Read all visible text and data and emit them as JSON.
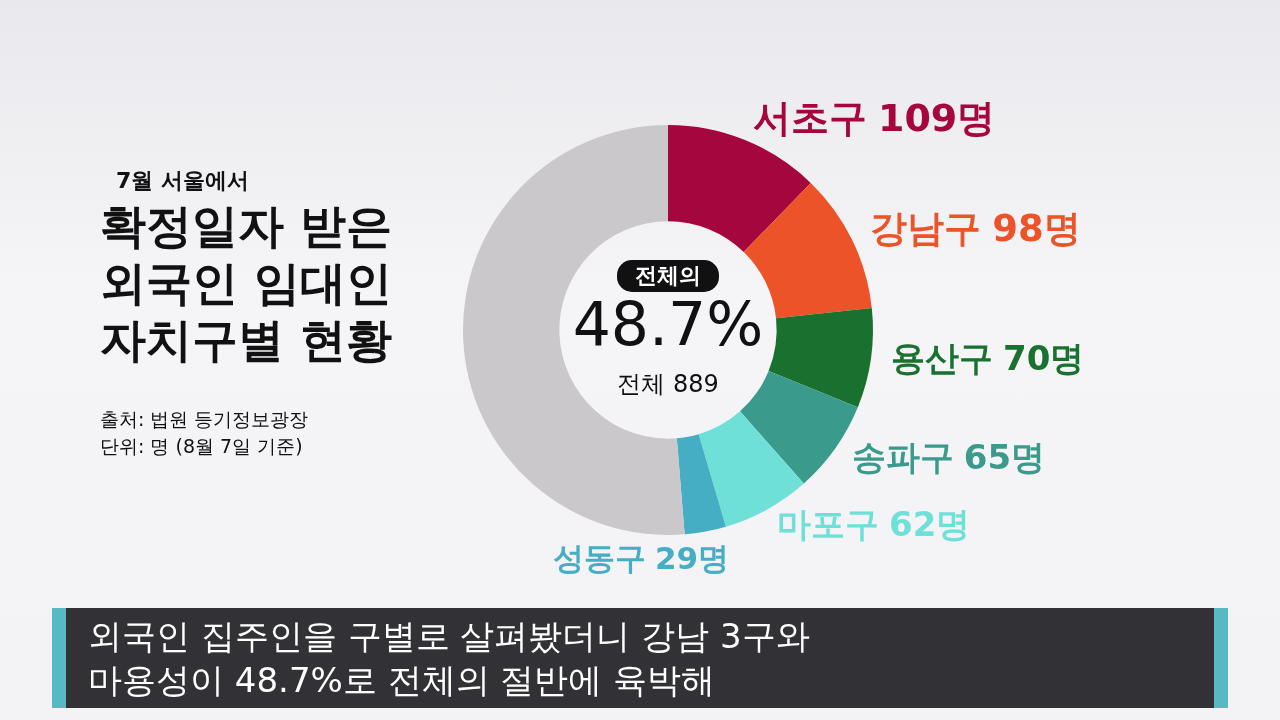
{
  "chart_data": {
    "type": "donut",
    "title": "확정일자 받은 외국인 임대인 자치구별 현황",
    "subtitle": "7월 서울에서",
    "categories": [
      "서초구",
      "강남구",
      "용산구",
      "송파구",
      "마포구",
      "성동구",
      null
    ],
    "values": [
      109,
      98,
      70,
      65,
      62,
      29,
      456
    ],
    "colors": [
      "#a6063e",
      "#ec5328",
      "#19702f",
      "#3a9b8c",
      "#6fe0d8",
      "#45aec4",
      "#cbc8cb"
    ],
    "value_labels": [
      "109명",
      "98명",
      "70명",
      "65명",
      "62명",
      "29명",
      null
    ],
    "annotations": [
      "전체의",
      "48.7%",
      "전체 889",
      "출처: 법원 등기정보광장",
      "단위: 명 (8월 7일 기준)",
      "외국인 집주인을 구별로 살펴봤더니 강남 3구와",
      "마용성이 48.7%로 전체의 절반에 육박해"
    ]
  }
}
